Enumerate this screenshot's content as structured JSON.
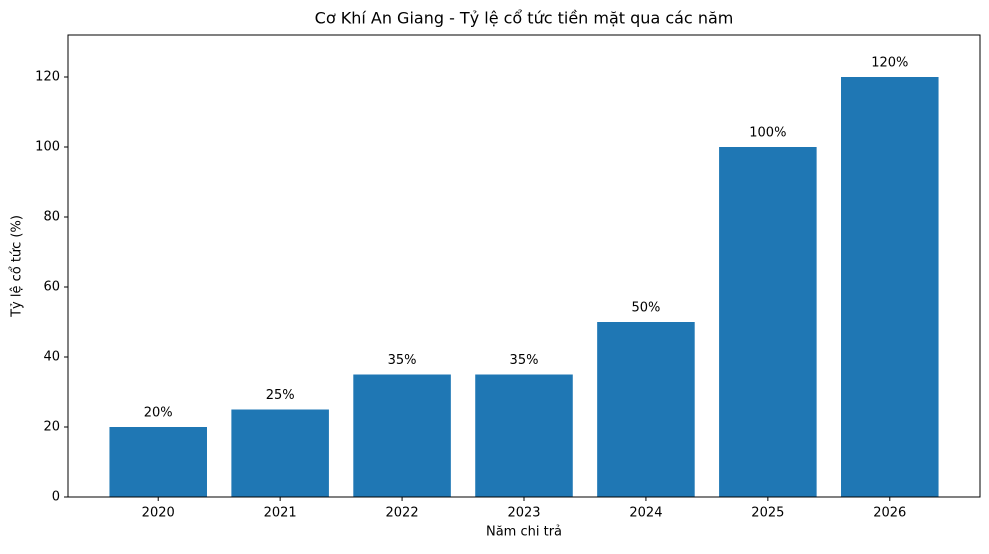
{
  "chart_data": {
    "type": "bar",
    "title": "Cơ Khí An Giang - Tỷ lệ cổ tức tiền mặt qua các năm",
    "x_label": "Năm chi trả",
    "y_label": "Tỷ lệ cổ tức (%)",
    "categories": [
      "2020",
      "2021",
      "2022",
      "2023",
      "2024",
      "2025",
      "2026"
    ],
    "values": [
      20,
      25,
      35,
      35,
      50,
      100,
      120
    ],
    "value_labels": [
      "20%",
      "25%",
      "35%",
      "35%",
      "50%",
      "100%",
      "120%"
    ],
    "color": "#1f77b4",
    "ylim": [
      0,
      132
    ],
    "yticks": [
      0,
      20,
      40,
      60,
      80,
      100,
      120
    ],
    "grid": false
  }
}
